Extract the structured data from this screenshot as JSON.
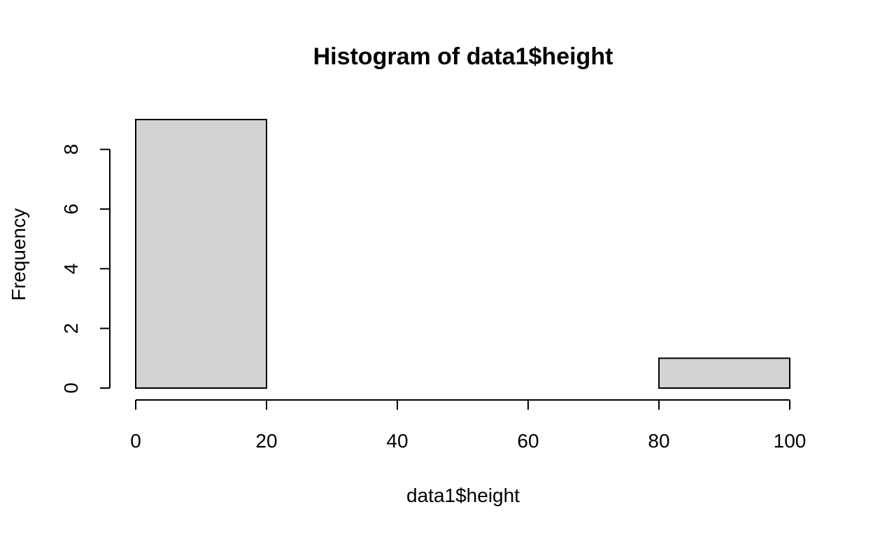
{
  "chart_data": {
    "type": "bar",
    "subtype": "histogram",
    "title": "Histogram of data1$height",
    "xlabel": "data1$height",
    "ylabel": "Frequency",
    "bins": [
      {
        "start": 0,
        "end": 20,
        "count": 9
      },
      {
        "start": 20,
        "end": 40,
        "count": 0
      },
      {
        "start": 40,
        "end": 60,
        "count": 0
      },
      {
        "start": 60,
        "end": 80,
        "count": 0
      },
      {
        "start": 80,
        "end": 100,
        "count": 1
      }
    ],
    "xlim": [
      0,
      100
    ],
    "ylim": [
      0,
      9
    ],
    "x_ticks": [
      0,
      20,
      40,
      60,
      80,
      100
    ],
    "y_ticks": [
      0,
      2,
      4,
      6,
      8
    ],
    "bar_fill": "#d3d3d3",
    "grid": false,
    "legend": "none"
  }
}
